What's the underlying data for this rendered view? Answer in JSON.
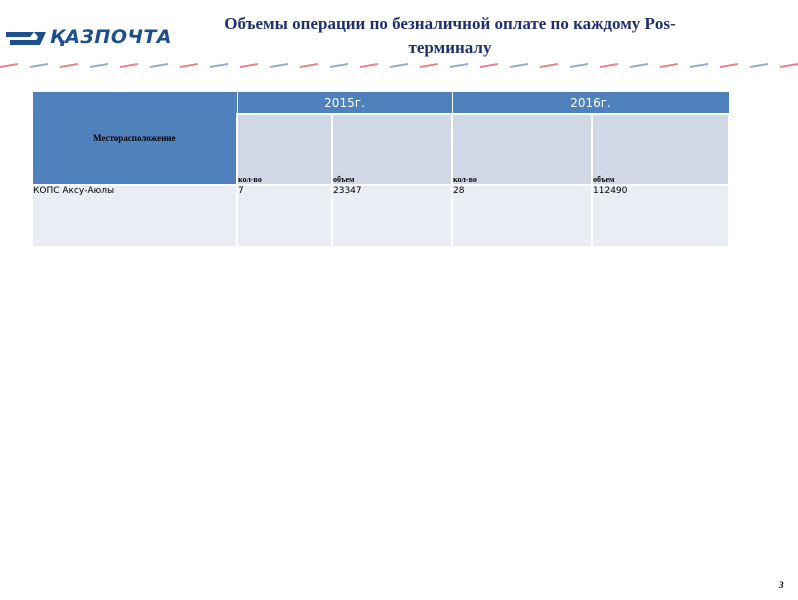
{
  "header": {
    "logo_text": "ҚАЗПОЧТА",
    "title": "Объемы операции по безналичной оплате по каждому Pos-терминалу"
  },
  "table": {
    "location_header": "Месторасположение",
    "years": [
      "2015г.",
      "2016г."
    ],
    "sub_headers": [
      "кол-во",
      "объем",
      "кол-во",
      "объем"
    ],
    "rows": [
      {
        "location": "КОПС Аксу-Аюлы",
        "values": [
          "7",
          "23347",
          "28",
          "112490"
        ]
      }
    ]
  },
  "footer": {
    "page_number": "3"
  },
  "colors": {
    "header_blue": "#4f81bd",
    "subheader_fill": "#d0d8e8",
    "row_fill": "#e9edf4",
    "title_color": "#1f2f6e",
    "stripe_red": "#d9434a",
    "stripe_blue": "#3f63a6"
  }
}
